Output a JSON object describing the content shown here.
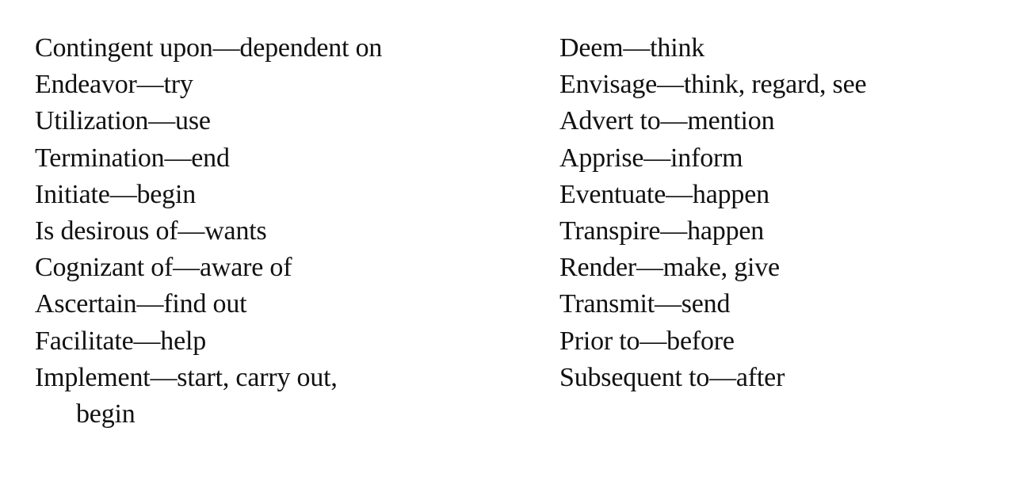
{
  "top_fragment": "",
  "left_column": [
    "Contingent upon—dependent on",
    "Endeavor—try",
    "Utilization—use",
    "Termination—end",
    "Initiate—begin",
    "Is desirous of—wants",
    "Cognizant of—aware of",
    "Ascertain—find out",
    "Facilitate—help",
    "Implement—start, carry out,",
    "begin"
  ],
  "right_column": [
    "Deem—think",
    "Envisage—think, regard, see",
    "Advert to—mention",
    "Apprise—inform",
    "Eventuate—happen",
    "Transpire—happen",
    "Render—make, give",
    "Transmit—send",
    "Prior to—before",
    "Subsequent to—after"
  ]
}
